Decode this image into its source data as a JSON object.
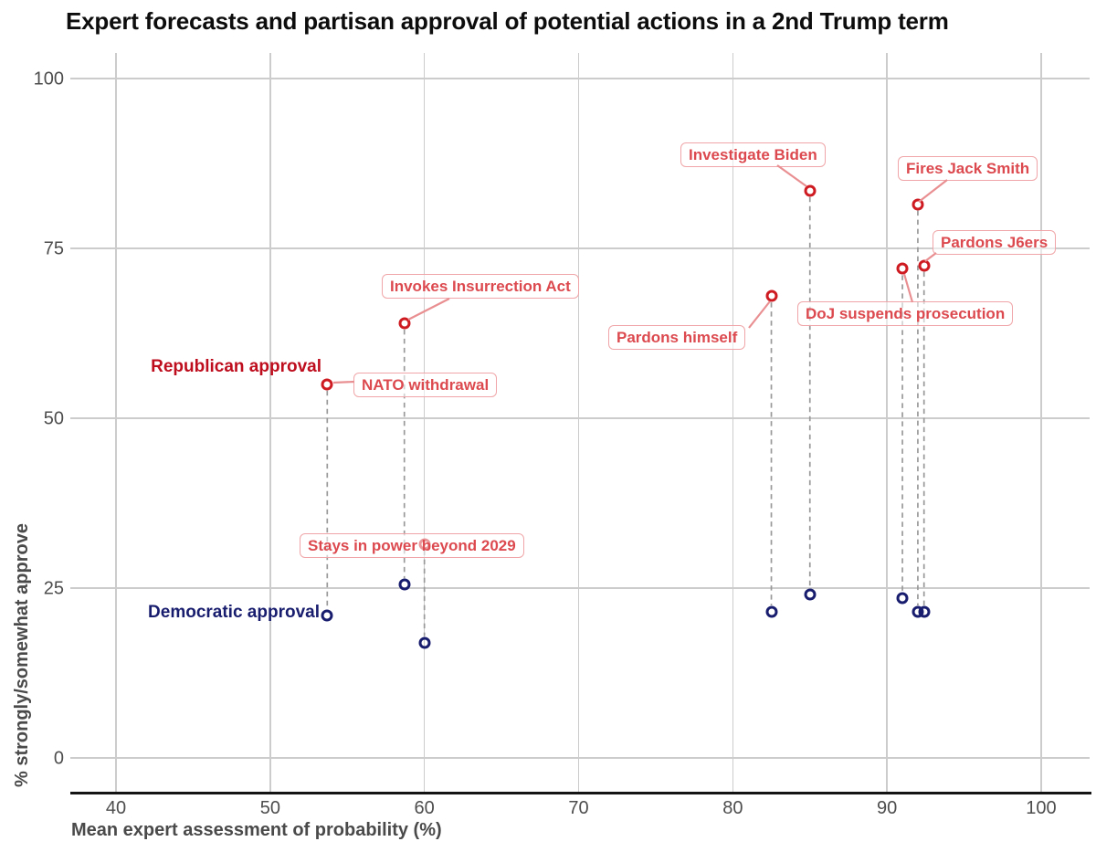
{
  "chart_data": {
    "type": "scatter",
    "title": "Expert forecasts and partisan approval of potential actions in a 2nd Trump term",
    "xlabel": "Mean expert assessment of probability (%)",
    "ylabel": "% strongly/somewhat approve",
    "x_ticks": [
      40,
      50,
      60,
      70,
      80,
      90,
      100
    ],
    "y_ticks": [
      0,
      25,
      50,
      75,
      100
    ],
    "xlim": [
      37,
      103
    ],
    "ylim": [
      -5,
      104
    ],
    "grid": true,
    "legend_position": "annotated-in-plot",
    "series": [
      {
        "name": "Republican approval",
        "key": "republican",
        "color": "#ce1a21"
      },
      {
        "name": "Democratic approval",
        "key": "democratic",
        "color": "#191d6e"
      }
    ],
    "points": [
      {
        "action": "NATO withdrawal",
        "x": 53.7,
        "republican": 55,
        "democratic": 21
      },
      {
        "action": "Invokes Insurrection Act",
        "x": 58.7,
        "republican": 64,
        "democratic": 25.5
      },
      {
        "action": "Stays in power beyond 2029",
        "x": 60,
        "republican": 31.5,
        "democratic": 17
      },
      {
        "action": "Pardons himself",
        "x": 82.5,
        "republican": 68,
        "democratic": 21.5
      },
      {
        "action": "Investigate Biden",
        "x": 85,
        "republican": 83.5,
        "democratic": 24
      },
      {
        "action": "DoJ suspends prosecution",
        "x": 91,
        "republican": 72,
        "democratic": 23.5
      },
      {
        "action": "Fires Jack Smith",
        "x": 92,
        "republican": 81.5,
        "democratic": 21.5
      },
      {
        "action": "Pardons J6ers",
        "x": 92.4,
        "republican": 72.5,
        "democratic": 21.5
      }
    ],
    "annotations": {
      "republican_label": "Republican approval",
      "democratic_label": "Democratic approval"
    }
  },
  "colors": {
    "republican_point": "#ce1a21",
    "democratic_point": "#191d6e",
    "republican_text": "#be0e1e",
    "democratic_text": "#191d6e",
    "label_box_text": "#dc4a4f",
    "label_box_border": "#f0a6a8",
    "leader_line": "#e98f92",
    "dashed_connector": "#999999",
    "gridline": "#cccccc",
    "axis_line": "#141414",
    "tick_text": "#4d4d4d",
    "axis_title_text": "#4a4a4a",
    "title_text": "#0d0d0d"
  }
}
